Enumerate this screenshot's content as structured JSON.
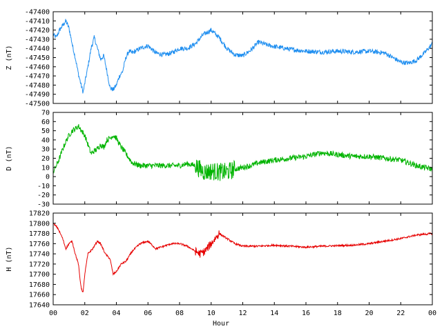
{
  "chart_data": {
    "type": "line",
    "xlabel": "Hour",
    "xlim": [
      0,
      24
    ],
    "xticks": [
      "00",
      "02",
      "04",
      "06",
      "08",
      "10",
      "12",
      "14",
      "16",
      "18",
      "20",
      "22",
      "00"
    ],
    "panels": [
      {
        "name": "Z",
        "ylabel": "Z (nT)",
        "ylim": [
          -47500,
          -47400
        ],
        "yticks": [
          "-47400",
          "-47410",
          "-47420",
          "-47430",
          "-47440",
          "-47450",
          "-47460",
          "-47470",
          "-47480",
          "-47490",
          "-47500"
        ],
        "color": "#1e8ef0",
        "x": [
          0,
          0.2,
          0.4,
          0.6,
          0.8,
          1.0,
          1.2,
          1.4,
          1.6,
          1.8,
          1.9,
          2.0,
          2.2,
          2.4,
          2.6,
          2.8,
          3.0,
          3.2,
          3.4,
          3.6,
          3.8,
          4.0,
          4.2,
          4.4,
          4.6,
          4.8,
          5.0,
          5.5,
          6.0,
          6.5,
          7.0,
          7.5,
          8.0,
          8.5,
          9.0,
          9.5,
          10.0,
          10.5,
          11.0,
          11.5,
          12.0,
          12.5,
          13.0,
          13.5,
          14.0,
          15.0,
          16.0,
          17.0,
          18.0,
          19.0,
          20.0,
          21.0,
          21.5,
          22.0,
          22.5,
          23.0,
          23.5,
          24.0
        ],
        "values": [
          -47425,
          -47428,
          -47420,
          -47415,
          -47410,
          -47418,
          -47435,
          -47450,
          -47468,
          -47482,
          -47488,
          -47478,
          -47460,
          -47440,
          -47428,
          -47440,
          -47452,
          -47448,
          -47465,
          -47483,
          -47485,
          -47480,
          -47470,
          -47465,
          -47450,
          -47443,
          -47445,
          -47440,
          -47437,
          -47445,
          -47447,
          -47445,
          -47440,
          -47440,
          -47435,
          -47425,
          -47420,
          -47428,
          -47440,
          -47447,
          -47448,
          -47442,
          -47433,
          -47436,
          -47438,
          -47441,
          -47443,
          -47444,
          -47443,
          -47444,
          -47443,
          -47445,
          -47450,
          -47455,
          -47456,
          -47453,
          -47445,
          -47435
        ],
        "noise": 2.5
      },
      {
        "name": "D",
        "ylabel": "D (nT)",
        "ylim": [
          -30,
          70
        ],
        "yticks": [
          "70",
          "60",
          "50",
          "40",
          "30",
          "20",
          "10",
          "0",
          "-10",
          "-20",
          "-30"
        ],
        "color": "#00b400",
        "x": [
          0,
          0.2,
          0.4,
          0.6,
          0.8,
          1.0,
          1.2,
          1.4,
          1.6,
          1.8,
          2.0,
          2.2,
          2.4,
          2.6,
          2.8,
          3.0,
          3.2,
          3.4,
          3.6,
          3.8,
          4.0,
          4.2,
          4.4,
          4.6,
          4.8,
          5.0,
          5.5,
          6.0,
          7.0,
          8.0,
          8.5,
          9.0,
          9.3,
          9.6,
          10.0,
          10.5,
          11.0,
          11.5,
          12.0,
          12.5,
          13.0,
          14.0,
          15.0,
          16.0,
          17.0,
          18.0,
          19.0,
          20.0,
          21.0,
          22.0,
          22.5,
          23.0,
          23.5,
          24.0
        ],
        "values": [
          5,
          12,
          20,
          30,
          38,
          45,
          50,
          52,
          55,
          50,
          45,
          35,
          25,
          28,
          30,
          35,
          32,
          40,
          42,
          45,
          42,
          35,
          30,
          25,
          20,
          15,
          12,
          12,
          12,
          12,
          14,
          12,
          8,
          5,
          6,
          5,
          5,
          8,
          10,
          12,
          15,
          18,
          20,
          22,
          26,
          24,
          22,
          22,
          20,
          18,
          15,
          12,
          10,
          8
        ],
        "noise": 3
      },
      {
        "name": "H",
        "ylabel": "H (nT)",
        "ylim": [
          17640,
          17820
        ],
        "yticks": [
          "17820",
          "17800",
          "17780",
          "17760",
          "17740",
          "17720",
          "17700",
          "17680",
          "17660",
          "17640"
        ],
        "color": "#e60000",
        "x": [
          0,
          0.3,
          0.6,
          0.8,
          1.0,
          1.2,
          1.4,
          1.6,
          1.7,
          1.8,
          1.9,
          2.0,
          2.2,
          2.5,
          2.8,
          3.0,
          3.3,
          3.6,
          3.8,
          4.0,
          4.3,
          4.6,
          5.0,
          5.5,
          6.0,
          6.5,
          7.0,
          7.5,
          8.0,
          8.5,
          9.0,
          9.3,
          9.6,
          10.0,
          10.5,
          11.0,
          11.5,
          12.0,
          13.0,
          14.0,
          15.0,
          16.0,
          17.0,
          18.0,
          19.0,
          20.0,
          21.0,
          22.0,
          23.0,
          24.0
        ],
        "values": [
          17800,
          17790,
          17770,
          17750,
          17760,
          17765,
          17740,
          17720,
          17690,
          17670,
          17665,
          17700,
          17740,
          17750,
          17765,
          17760,
          17740,
          17730,
          17700,
          17705,
          17720,
          17725,
          17745,
          17760,
          17765,
          17750,
          17755,
          17760,
          17760,
          17755,
          17745,
          17740,
          17745,
          17760,
          17780,
          17770,
          17760,
          17755,
          17755,
          17757,
          17755,
          17753,
          17755,
          17756,
          17757,
          17760,
          17765,
          17770,
          17777,
          17780
        ],
        "noise": 1.8
      }
    ]
  }
}
